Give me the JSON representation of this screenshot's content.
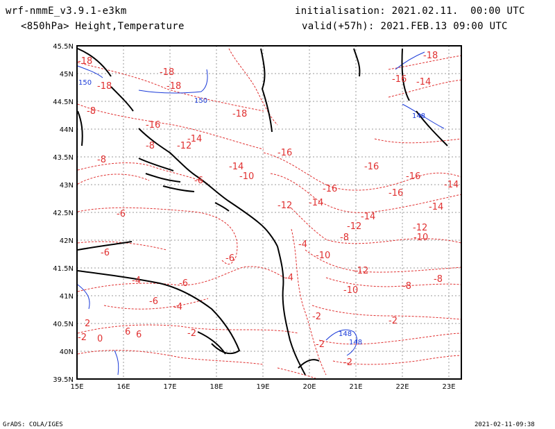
{
  "header": {
    "model": "wrf-nmmE_v3.9.1-e3km",
    "product": "<850hPa> Height,Temperature",
    "init": "initialisation: 2021.02.11.  00:00 UTC",
    "valid": "valid(+57h): 2021.FEB.13 09:00 UTC"
  },
  "footer": {
    "credit": "GrADS: COLA/IGES",
    "timestamp": "2021-02-11-09:38"
  },
  "map": {
    "lat_labels": [
      "45.5N",
      "45N",
      "44.5N",
      "44N",
      "43.5N",
      "43N",
      "42.5N",
      "42N",
      "41.5N",
      "41N",
      "40.5N",
      "40N",
      "39.5N"
    ],
    "lon_labels": [
      "15E",
      "16E",
      "17E",
      "18E",
      "19E",
      "20E",
      "21E",
      "22E",
      "23E"
    ],
    "temperature_labels": [
      "-18",
      "-18",
      "-18",
      "-18",
      "-18",
      "-18",
      "-16",
      "-16",
      "-16",
      "-16",
      "-16",
      "-16",
      "-16",
      "-14",
      "-14",
      "-14",
      "-14",
      "-14",
      "-14",
      "-14",
      "-12",
      "-12",
      "-12",
      "-12",
      "-12",
      "-10",
      "-10",
      "-10",
      "-10",
      "-8",
      "-8",
      "-8",
      "-8",
      "-8",
      "-8",
      "-6",
      "-6",
      "-6",
      "-6",
      "-6",
      "-6",
      "-4",
      "-4",
      "-4",
      "-4",
      "-2",
      "-2",
      "-2",
      "-2",
      "-2",
      "-2",
      "0",
      "2",
      "6",
      "6"
    ],
    "height_labels": [
      "150",
      "150",
      "148",
      "148",
      "148"
    ],
    "colors": {
      "temperature": "#e03030",
      "height": "#1a3ad8",
      "coast": "#000000",
      "grid": "#888888"
    }
  }
}
